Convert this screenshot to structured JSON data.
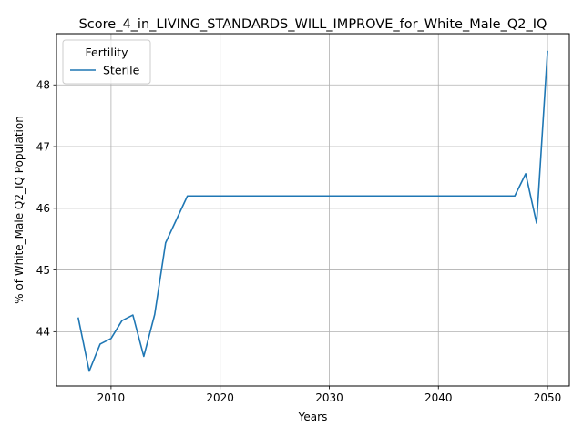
{
  "chart_data": {
    "type": "line",
    "title": "Score_4_in_LIVING_STANDARDS_WILL_IMPROVE_for_White_Male_Q2_IQ",
    "xlabel": "Years",
    "ylabel": "% of White_Male Q2_IQ Population",
    "xlim": [
      2005,
      2052
    ],
    "ylim": [
      43.12,
      48.83
    ],
    "xticks": [
      2010,
      2020,
      2030,
      2040,
      2050
    ],
    "yticks": [
      44,
      45,
      46,
      47,
      48
    ],
    "grid": true,
    "legend": {
      "title": "Fertility",
      "placement": "top-left"
    },
    "series": [
      {
        "name": "Sterile",
        "color": "#1f77b4",
        "x": [
          2007,
          2008,
          2009,
          2010,
          2011,
          2012,
          2013,
          2014,
          2015,
          2016,
          2017,
          2018,
          2019,
          2020,
          2021,
          2022,
          2023,
          2024,
          2025,
          2026,
          2027,
          2028,
          2029,
          2030,
          2031,
          2032,
          2033,
          2034,
          2035,
          2036,
          2037,
          2038,
          2039,
          2040,
          2041,
          2042,
          2043,
          2044,
          2045,
          2046,
          2047,
          2048,
          2049,
          2050
        ],
        "values": [
          44.22,
          43.36,
          43.8,
          43.89,
          44.18,
          44.27,
          43.6,
          44.28,
          45.44,
          45.82,
          46.2,
          46.2,
          46.2,
          46.2,
          46.2,
          46.2,
          46.2,
          46.2,
          46.2,
          46.2,
          46.2,
          46.2,
          46.2,
          46.2,
          46.2,
          46.2,
          46.2,
          46.2,
          46.2,
          46.2,
          46.2,
          46.2,
          46.2,
          46.2,
          46.2,
          46.2,
          46.2,
          46.2,
          46.2,
          46.2,
          46.2,
          46.56,
          45.76,
          48.54
        ]
      }
    ]
  }
}
